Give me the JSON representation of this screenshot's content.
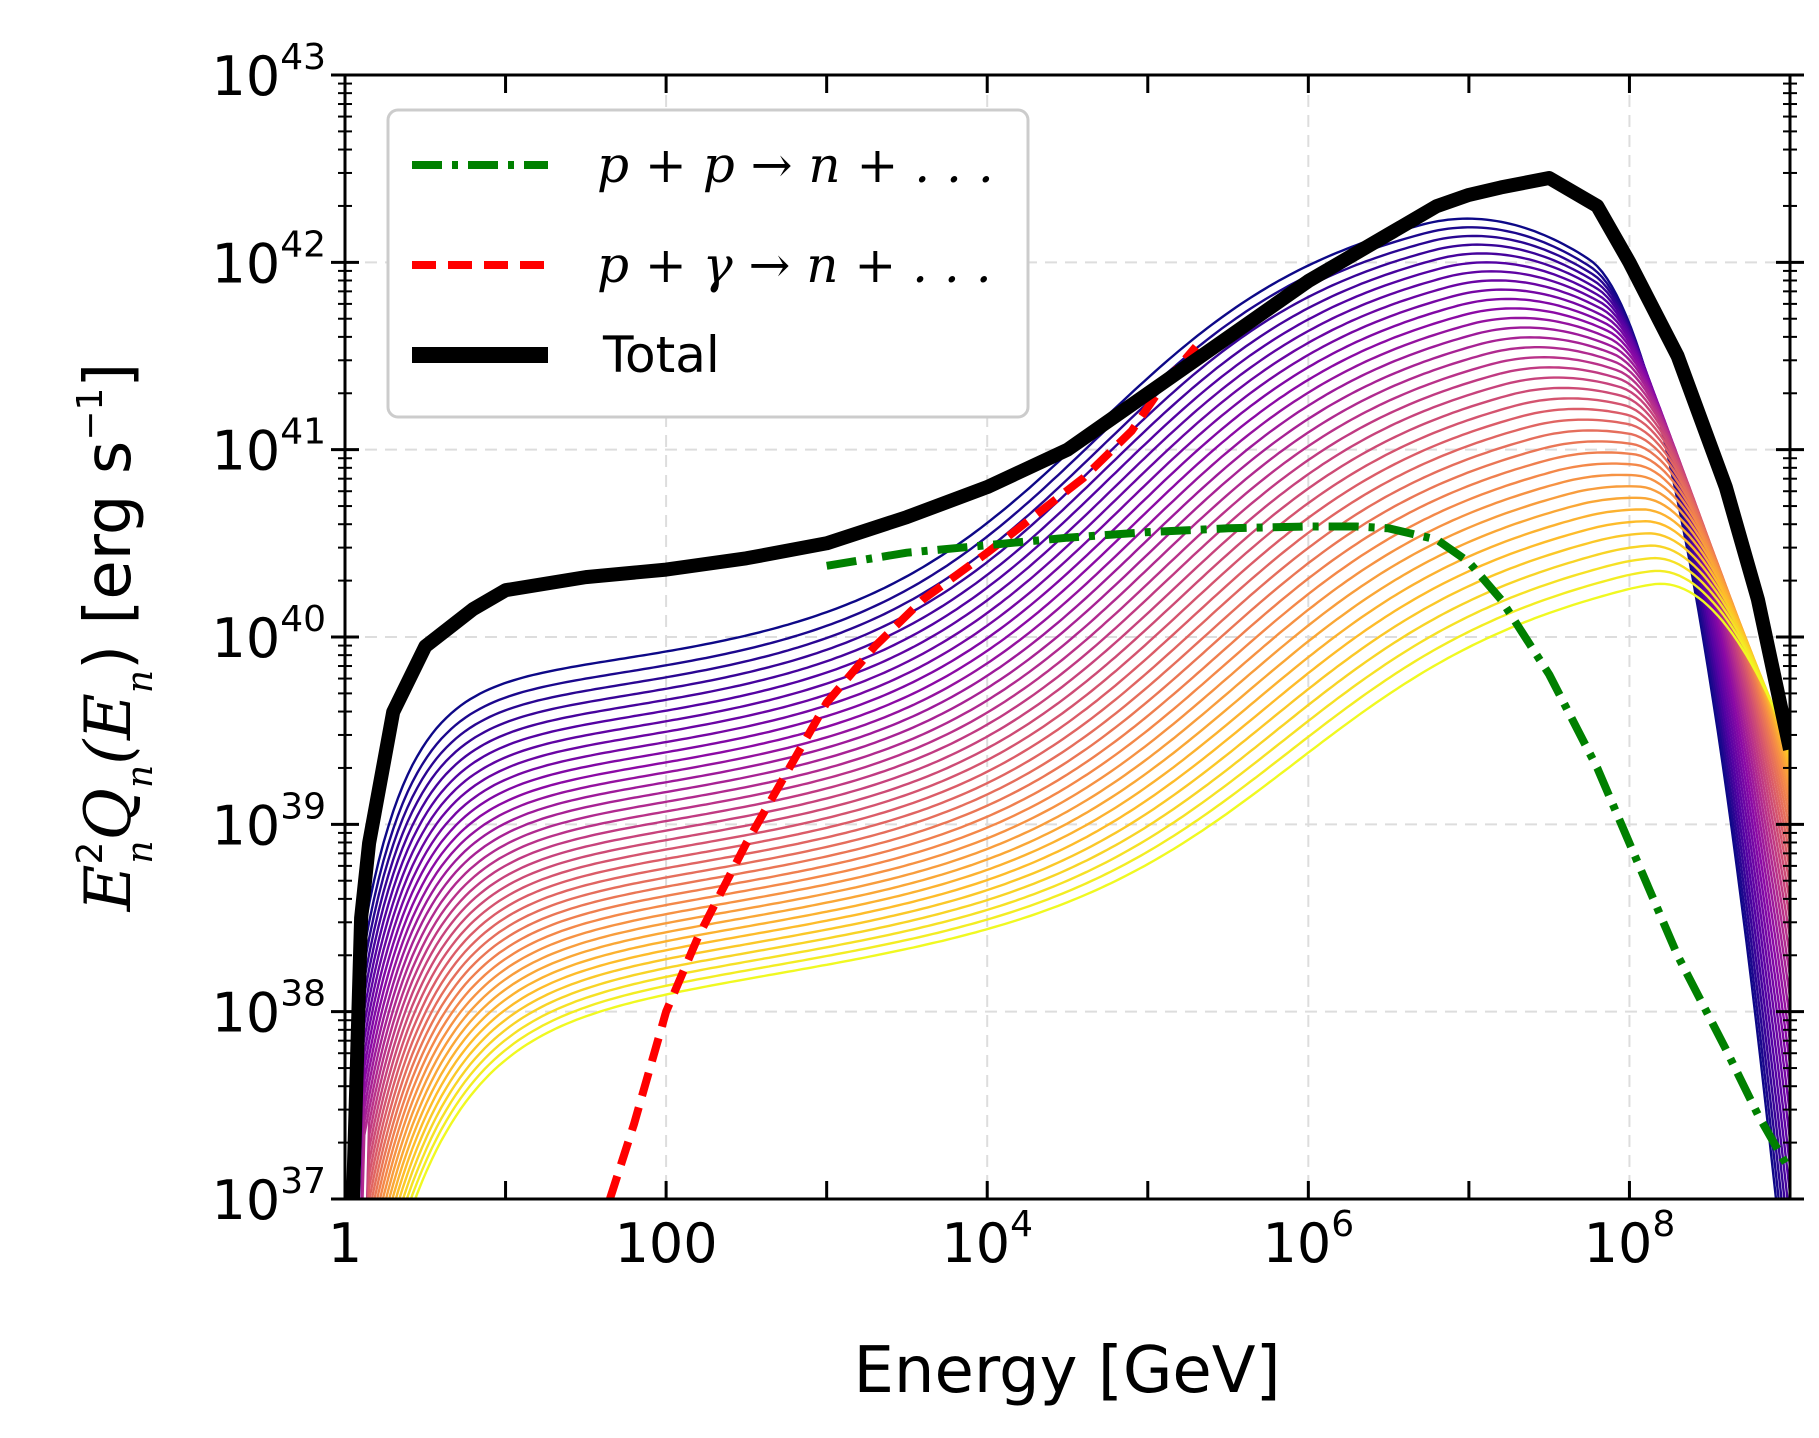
{
  "chart_data": {
    "type": "line",
    "xscale": "log",
    "yscale": "log",
    "xlim": [
      1,
      1000000000
    ],
    "ylim": [
      1e+37,
      1e+43
    ],
    "xlabel": "Energy [GeV]",
    "ylabel": {
      "pre": "E",
      "sup": "2",
      "sub": "n",
      "mid": "Q",
      "sub2": "n",
      "paren_open": "(E",
      "sub3": "n",
      "paren_close": ") [erg s",
      "sup2": "−1",
      "end": "]"
    },
    "x_ticks": [
      {
        "value": 1,
        "base": "1",
        "exp": ""
      },
      {
        "value": 100,
        "base": "100",
        "exp": ""
      },
      {
        "value": 10000,
        "base": "10",
        "exp": "4"
      },
      {
        "value": 1000000,
        "base": "10",
        "exp": "6"
      },
      {
        "value": 100000000,
        "base": "10",
        "exp": "8"
      }
    ],
    "y_ticks": [
      {
        "value": 37,
        "base": "10",
        "exp": "37"
      },
      {
        "value": 38,
        "base": "10",
        "exp": "38"
      },
      {
        "value": 39,
        "base": "10",
        "exp": "39"
      },
      {
        "value": 40,
        "base": "10",
        "exp": "40"
      },
      {
        "value": 41,
        "base": "10",
        "exp": "41"
      },
      {
        "value": 42,
        "base": "10",
        "exp": "42"
      },
      {
        "value": 43,
        "base": "10",
        "exp": "43"
      }
    ],
    "grid": true,
    "legend_position": "top-left",
    "legend": [
      {
        "label": "p + p → n + . . .",
        "color": "#008000",
        "style": "dashdot"
      },
      {
        "label": "p + γ → n + . . .",
        "color": "#ff0000",
        "style": "dashed"
      },
      {
        "label": "Total",
        "color": "#000000",
        "style": "solid-thick"
      }
    ],
    "colormap": {
      "name": "plasma",
      "stops": [
        "#0d0887",
        "#5402a3",
        "#8b0aa5",
        "#b93289",
        "#db5c68",
        "#f48849",
        "#febc2a",
        "#f0f921"
      ],
      "curve_count": 36,
      "description": "family of spectra, colour from dark blue (highest) to yellow (lowest)"
    },
    "series": [
      {
        "name": "Total",
        "color": "#000000",
        "log10_x": [
          0.05,
          0.1,
          0.15,
          0.3,
          0.5,
          0.8,
          1.0,
          1.5,
          2.0,
          2.5,
          3.0,
          3.5,
          4.0,
          4.5,
          5.0,
          5.5,
          6.0,
          6.5,
          6.8,
          7.0,
          7.2,
          7.5,
          7.8,
          8.0,
          8.3,
          8.6,
          8.8,
          9.0
        ],
        "log10_y": [
          37.0,
          38.5,
          38.9,
          39.6,
          39.95,
          40.15,
          40.25,
          40.32,
          40.36,
          40.42,
          40.5,
          40.64,
          40.8,
          41.0,
          41.3,
          41.6,
          41.9,
          42.15,
          42.3,
          42.36,
          42.4,
          42.45,
          42.3,
          42.0,
          41.5,
          40.8,
          40.2,
          39.4
        ]
      },
      {
        "name": "p + p → n + . . .",
        "color": "#008000",
        "log10_x": [
          3.0,
          3.5,
          4.0,
          4.5,
          5.0,
          5.5,
          6.0,
          6.3,
          6.5,
          6.8,
          7.0,
          7.2,
          7.5,
          7.8,
          8.0,
          8.3,
          8.6,
          8.8,
          9.0
        ],
        "log10_y": [
          40.38,
          40.45,
          40.49,
          40.53,
          40.56,
          40.58,
          40.59,
          40.59,
          40.58,
          40.52,
          40.4,
          40.2,
          39.8,
          39.3,
          38.9,
          38.3,
          37.8,
          37.45,
          37.15
        ]
      },
      {
        "name": "p + γ → n + . . .",
        "color": "#ff0000",
        "log10_x": [
          1.65,
          1.8,
          2.0,
          2.2,
          2.5,
          2.8,
          3.0,
          3.3,
          3.6,
          4.0,
          4.3,
          4.6,
          4.9,
          5.1,
          5.3
        ],
        "log10_y": [
          37.0,
          37.4,
          38.0,
          38.4,
          38.9,
          39.35,
          39.65,
          39.95,
          40.2,
          40.45,
          40.65,
          40.85,
          41.1,
          41.35,
          41.55
        ]
      }
    ]
  }
}
